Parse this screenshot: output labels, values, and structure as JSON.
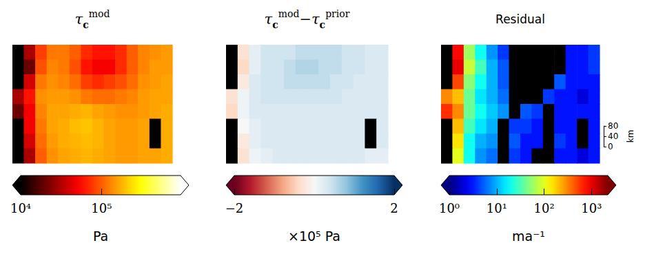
{
  "chart_data": [
    {
      "type": "heatmap",
      "title": [
        {
          "text": "τ"
        },
        {
          "sub": "c"
        },
        {
          "sup": "mod"
        }
      ],
      "log": true,
      "cells": [
        [
          null,
          30000,
          80000,
          120000,
          120000,
          100000,
          70000,
          60000,
          60000,
          70000,
          100000,
          130000,
          140000,
          150000
        ],
        [
          null,
          20000,
          90000,
          130000,
          120000,
          90000,
          60000,
          50000,
          50000,
          70000,
          100000,
          130000,
          150000,
          150000
        ],
        [
          null,
          40000,
          120000,
          140000,
          130000,
          110000,
          80000,
          70000,
          80000,
          90000,
          110000,
          140000,
          150000,
          160000
        ],
        [
          30000,
          60000,
          140000,
          150000,
          150000,
          140000,
          120000,
          110000,
          110000,
          120000,
          130000,
          150000,
          160000,
          160000
        ],
        [
          20000,
          50000,
          130000,
          160000,
          160000,
          170000,
          180000,
          160000,
          150000,
          140000,
          140000,
          150000,
          160000,
          170000
        ],
        [
          null,
          50000,
          120000,
          160000,
          170000,
          190000,
          200000,
          180000,
          160000,
          150000,
          150000,
          160000,
          null,
          170000
        ],
        [
          null,
          40000,
          110000,
          150000,
          170000,
          180000,
          190000,
          180000,
          160000,
          150000,
          150000,
          160000,
          null,
          170000
        ],
        [
          null,
          30000,
          100000,
          140000,
          160000,
          170000,
          180000,
          170000,
          160000,
          150000,
          150000,
          160000,
          160000,
          170000
        ]
      ],
      "colorbar": {
        "lim": [
          10000,
          950000
        ],
        "ticks": [
          {
            "value": 10000,
            "label": "10⁴"
          },
          {
            "value": 100000,
            "label": "10⁵"
          }
        ],
        "label": "Pa"
      }
    },
    {
      "type": "heatmap",
      "title": [
        {
          "text": "τ"
        },
        {
          "sub": "c"
        },
        {
          "sup": "mod"
        },
        {
          "text": "−τ"
        },
        {
          "sub": "c"
        },
        {
          "sup": "prior"
        }
      ],
      "cells": [
        [
          null,
          -0.3,
          0.2,
          0.4,
          0.4,
          0.4,
          0.5,
          0.5,
          0.5,
          0.5,
          0.4,
          0.4,
          0.3,
          0.3
        ],
        [
          null,
          -0.4,
          0.2,
          0.4,
          0.4,
          0.5,
          0.6,
          0.6,
          0.5,
          0.5,
          0.4,
          0.4,
          0.3,
          0.3
        ],
        [
          null,
          -0.2,
          0.3,
          0.4,
          0.4,
          0.5,
          0.5,
          0.5,
          0.5,
          0.4,
          0.4,
          0.3,
          0.3,
          0.3
        ],
        [
          -0.3,
          0.1,
          0.3,
          0.4,
          0.4,
          0.4,
          0.4,
          0.4,
          0.4,
          0.4,
          0.3,
          0.3,
          0.3,
          0.3
        ],
        [
          -0.4,
          0.1,
          0.3,
          0.3,
          0.3,
          0.3,
          0.3,
          0.3,
          0.3,
          0.3,
          0.3,
          0.3,
          0.3,
          0.3
        ],
        [
          null,
          0.0,
          0.2,
          0.3,
          0.3,
          0.3,
          0.3,
          0.3,
          0.3,
          0.3,
          0.3,
          0.3,
          null,
          0.3
        ],
        [
          null,
          -0.2,
          0.2,
          0.3,
          0.3,
          0.3,
          0.3,
          0.3,
          0.3,
          0.3,
          0.3,
          0.3,
          null,
          0.3
        ],
        [
          null,
          -0.3,
          0.1,
          0.2,
          0.3,
          0.3,
          0.3,
          0.3,
          0.3,
          0.3,
          0.3,
          0.3,
          0.2,
          0.2
        ]
      ],
      "colorbar": {
        "lim": [
          -2,
          2
        ],
        "ticks": [
          {
            "value": -2,
            "label": "−2"
          },
          2
        ],
        "label": "×10⁵ Pa"
      }
    },
    {
      "type": "heatmap",
      "title": [
        {
          "text": "Residual"
        }
      ],
      "log": true,
      "cells": [
        [
          null,
          800,
          60,
          20,
          8,
          4,
          null,
          null,
          null,
          null,
          null,
          3,
          3,
          4
        ],
        [
          null,
          1000,
          80,
          30,
          10,
          5,
          null,
          null,
          null,
          null,
          null,
          3,
          3,
          4
        ],
        [
          null,
          500,
          50,
          20,
          10,
          5,
          null,
          null,
          null,
          null,
          5,
          3,
          3,
          3
        ],
        [
          300,
          200,
          40,
          15,
          10,
          6,
          null,
          null,
          null,
          4,
          3,
          3,
          2,
          3
        ],
        [
          600,
          300,
          40,
          20,
          12,
          8,
          null,
          5,
          4,
          null,
          3,
          3,
          3,
          3
        ],
        [
          null,
          200,
          30,
          15,
          10,
          null,
          4,
          4,
          3,
          null,
          3,
          3,
          null,
          3
        ],
        [
          null,
          150,
          20,
          10,
          8,
          null,
          5,
          3,
          3,
          null,
          4,
          3,
          null,
          3
        ],
        [
          null,
          100,
          20,
          8,
          6,
          null,
          4,
          3,
          null,
          null,
          3,
          3,
          2,
          3
        ]
      ],
      "colorbar": {
        "lim": [
          1,
          2200
        ],
        "ticks": [
          {
            "value": 1,
            "label": "10⁰"
          },
          {
            "value": 10,
            "label": "10¹"
          },
          {
            "value": 100,
            "label": "10²"
          },
          {
            "value": 1000,
            "label": "10³"
          }
        ],
        "label": "ma⁻¹"
      },
      "scale_bar": {
        "lim": [
          0,
          80
        ],
        "ticks": [
          0,
          40,
          80
        ],
        "label": "km"
      }
    }
  ]
}
